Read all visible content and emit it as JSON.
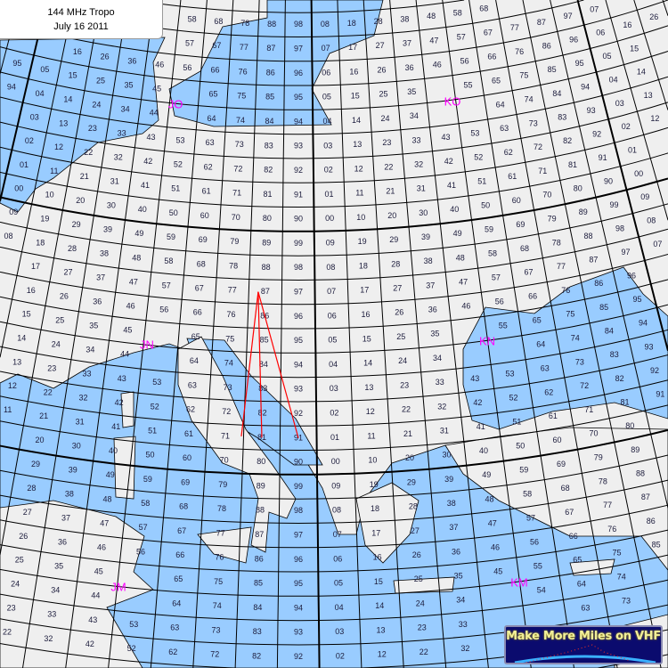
{
  "title": {
    "line1": "144 MHz Tropo",
    "line2": "July 16 2011"
  },
  "map": {
    "projection": "conic",
    "extent_lon": [
      -14,
      50
    ],
    "extent_lat": [
      28,
      64
    ],
    "colors": {
      "land": "#efefef",
      "sea": "#99ccff",
      "grid": "#000000",
      "field_label": "#ff00ff",
      "path": "#ff0000"
    },
    "field_labels": [
      "JO",
      "KO",
      "JN",
      "KN",
      "JM",
      "KM"
    ],
    "paths_from": "JN87",
    "paths_to": [
      "JN71",
      "JN81",
      "JN91"
    ]
  },
  "logo": {
    "text": "Make More Miles on VHF"
  }
}
